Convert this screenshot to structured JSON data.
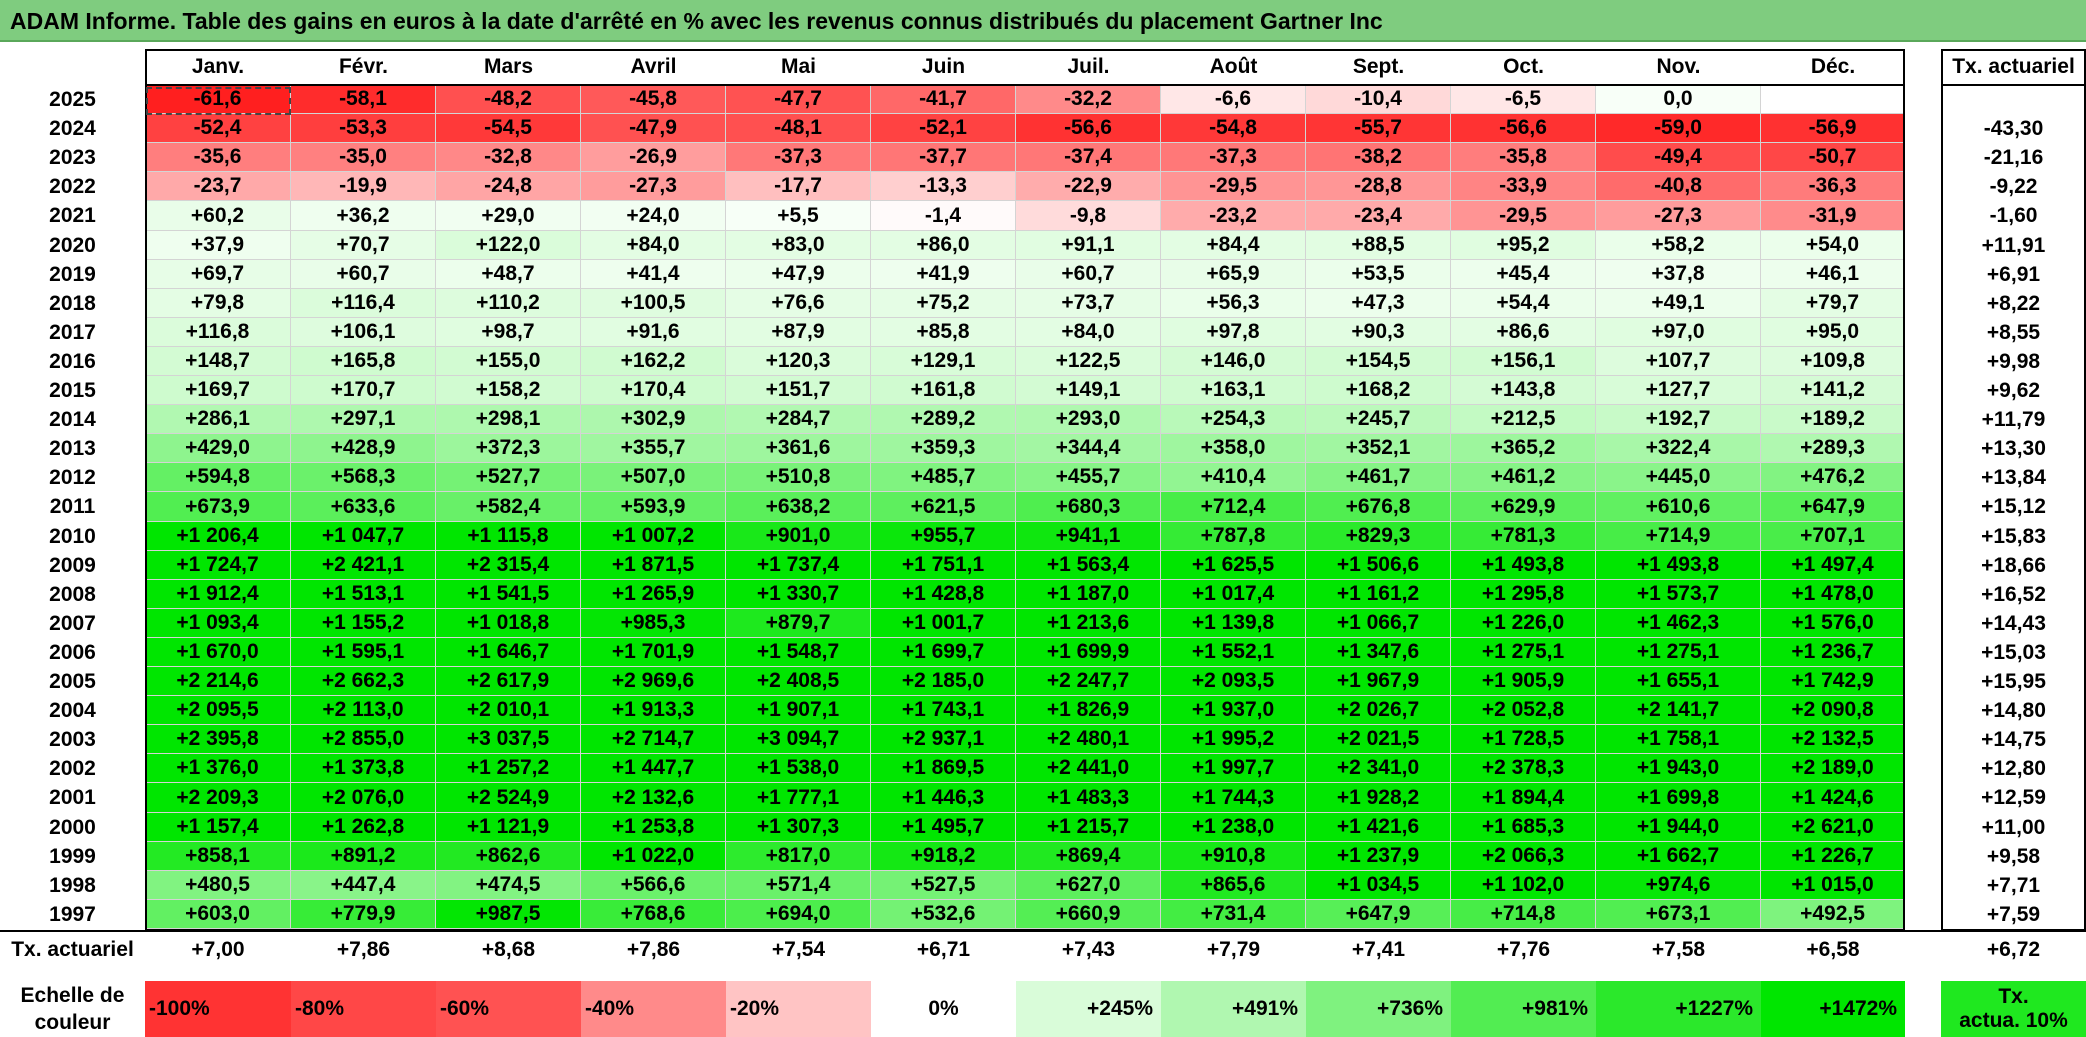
{
  "title": "ADAM Informe. Table des gains en euros à la date d'arrêté en % avec les revenus connus distribués du placement Gartner Inc",
  "months": [
    "Janv.",
    "Févr.",
    "Mars",
    "Avril",
    "Mai",
    "Juin",
    "Juil.",
    "Août",
    "Sept.",
    "Oct.",
    "Nov.",
    "Déc."
  ],
  "actuarial_header": "Tx. actuariel",
  "colors": {
    "title_bg": "#7fcc7f",
    "neg_max": "#ff1a1a",
    "pos_max": "#00e600",
    "neutral": "#ffffff"
  },
  "rows": [
    {
      "year": "2025",
      "values": [
        "-61,6",
        "-58,1",
        "-48,2",
        "-45,8",
        "-47,7",
        "-41,7",
        "-32,2",
        "-6,6",
        "-10,4",
        "-6,5",
        "0,0",
        ""
      ],
      "rate": ""
    },
    {
      "year": "2024",
      "values": [
        "-52,4",
        "-53,3",
        "-54,5",
        "-47,9",
        "-48,1",
        "-52,1",
        "-56,6",
        "-54,8",
        "-55,7",
        "-56,6",
        "-59,0",
        "-56,9"
      ],
      "rate": "-43,30"
    },
    {
      "year": "2023",
      "values": [
        "-35,6",
        "-35,0",
        "-32,8",
        "-26,9",
        "-37,3",
        "-37,7",
        "-37,4",
        "-37,3",
        "-38,2",
        "-35,8",
        "-49,4",
        "-50,7"
      ],
      "rate": "-21,16"
    },
    {
      "year": "2022",
      "values": [
        "-23,7",
        "-19,9",
        "-24,8",
        "-27,3",
        "-17,7",
        "-13,3",
        "-22,9",
        "-29,5",
        "-28,8",
        "-33,9",
        "-40,8",
        "-36,3"
      ],
      "rate": "-9,22"
    },
    {
      "year": "2021",
      "values": [
        "+60,2",
        "+36,2",
        "+29,0",
        "+24,0",
        "+5,5",
        "-1,4",
        "-9,8",
        "-23,2",
        "-23,4",
        "-29,5",
        "-27,3",
        "-31,9"
      ],
      "rate": "-1,60"
    },
    {
      "year": "2020",
      "values": [
        "+37,9",
        "+70,7",
        "+122,0",
        "+84,0",
        "+83,0",
        "+86,0",
        "+91,1",
        "+84,4",
        "+88,5",
        "+95,2",
        "+58,2",
        "+54,0"
      ],
      "rate": "+11,91"
    },
    {
      "year": "2019",
      "values": [
        "+69,7",
        "+60,7",
        "+48,7",
        "+41,4",
        "+47,9",
        "+41,9",
        "+60,7",
        "+65,9",
        "+53,5",
        "+45,4",
        "+37,8",
        "+46,1"
      ],
      "rate": "+6,91"
    },
    {
      "year": "2018",
      "values": [
        "+79,8",
        "+116,4",
        "+110,2",
        "+100,5",
        "+76,6",
        "+75,2",
        "+73,7",
        "+56,3",
        "+47,3",
        "+54,4",
        "+49,1",
        "+79,7"
      ],
      "rate": "+8,22"
    },
    {
      "year": "2017",
      "values": [
        "+116,8",
        "+106,1",
        "+98,7",
        "+91,6",
        "+87,9",
        "+85,8",
        "+84,0",
        "+97,8",
        "+90,3",
        "+86,6",
        "+97,0",
        "+95,0"
      ],
      "rate": "+8,55"
    },
    {
      "year": "2016",
      "values": [
        "+148,7",
        "+165,8",
        "+155,0",
        "+162,2",
        "+120,3",
        "+129,1",
        "+122,5",
        "+146,0",
        "+154,5",
        "+156,1",
        "+107,7",
        "+109,8"
      ],
      "rate": "+9,98"
    },
    {
      "year": "2015",
      "values": [
        "+169,7",
        "+170,7",
        "+158,2",
        "+170,4",
        "+151,7",
        "+161,8",
        "+149,1",
        "+163,1",
        "+168,2",
        "+143,8",
        "+127,7",
        "+141,2"
      ],
      "rate": "+9,62"
    },
    {
      "year": "2014",
      "values": [
        "+286,1",
        "+297,1",
        "+298,1",
        "+302,9",
        "+284,7",
        "+289,2",
        "+293,0",
        "+254,3",
        "+245,7",
        "+212,5",
        "+192,7",
        "+189,2"
      ],
      "rate": "+11,79"
    },
    {
      "year": "2013",
      "values": [
        "+429,0",
        "+428,9",
        "+372,3",
        "+355,7",
        "+361,6",
        "+359,3",
        "+344,4",
        "+358,0",
        "+352,1",
        "+365,2",
        "+322,4",
        "+289,3"
      ],
      "rate": "+13,30"
    },
    {
      "year": "2012",
      "values": [
        "+594,8",
        "+568,3",
        "+527,7",
        "+507,0",
        "+510,8",
        "+485,7",
        "+455,7",
        "+410,4",
        "+461,7",
        "+461,2",
        "+445,0",
        "+476,2"
      ],
      "rate": "+13,84"
    },
    {
      "year": "2011",
      "values": [
        "+673,9",
        "+633,6",
        "+582,4",
        "+593,9",
        "+638,2",
        "+621,5",
        "+680,3",
        "+712,4",
        "+676,8",
        "+629,9",
        "+610,6",
        "+647,9"
      ],
      "rate": "+15,12"
    },
    {
      "year": "2010",
      "values": [
        "+1 206,4",
        "+1 047,7",
        "+1 115,8",
        "+1 007,2",
        "+901,0",
        "+955,7",
        "+941,1",
        "+787,8",
        "+829,3",
        "+781,3",
        "+714,9",
        "+707,1"
      ],
      "rate": "+15,83"
    },
    {
      "year": "2009",
      "values": [
        "+1 724,7",
        "+2 421,1",
        "+2 315,4",
        "+1 871,5",
        "+1 737,4",
        "+1 751,1",
        "+1 563,4",
        "+1 625,5",
        "+1 506,6",
        "+1 493,8",
        "+1 493,8",
        "+1 497,4"
      ],
      "rate": "+18,66"
    },
    {
      "year": "2008",
      "values": [
        "+1 912,4",
        "+1 513,1",
        "+1 541,5",
        "+1 265,9",
        "+1 330,7",
        "+1 428,8",
        "+1 187,0",
        "+1 017,4",
        "+1 161,2",
        "+1 295,8",
        "+1 573,7",
        "+1 478,0"
      ],
      "rate": "+16,52"
    },
    {
      "year": "2007",
      "values": [
        "+1 093,4",
        "+1 155,2",
        "+1 018,8",
        "+985,3",
        "+879,7",
        "+1 001,7",
        "+1 213,6",
        "+1 139,8",
        "+1 066,7",
        "+1 226,0",
        "+1 462,3",
        "+1 576,0"
      ],
      "rate": "+14,43"
    },
    {
      "year": "2006",
      "values": [
        "+1 670,0",
        "+1 595,1",
        "+1 646,7",
        "+1 701,9",
        "+1 548,7",
        "+1 699,7",
        "+1 699,9",
        "+1 552,1",
        "+1 347,6",
        "+1 275,1",
        "+1 275,1",
        "+1 236,7"
      ],
      "rate": "+15,03"
    },
    {
      "year": "2005",
      "values": [
        "+2 214,6",
        "+2 662,3",
        "+2 617,9",
        "+2 969,6",
        "+2 408,5",
        "+2 185,0",
        "+2 247,7",
        "+2 093,5",
        "+1 967,9",
        "+1 905,9",
        "+1 655,1",
        "+1 742,9"
      ],
      "rate": "+15,95"
    },
    {
      "year": "2004",
      "values": [
        "+2 095,5",
        "+2 113,0",
        "+2 010,1",
        "+1 913,3",
        "+1 907,1",
        "+1 743,1",
        "+1 826,9",
        "+1 937,0",
        "+2 026,7",
        "+2 052,8",
        "+2 141,7",
        "+2 090,8"
      ],
      "rate": "+14,80"
    },
    {
      "year": "2003",
      "values": [
        "+2 395,8",
        "+2 855,0",
        "+3 037,5",
        "+2 714,7",
        "+3 094,7",
        "+2 937,1",
        "+2 480,1",
        "+1 995,2",
        "+2 021,5",
        "+1 728,5",
        "+1 758,1",
        "+2 132,5"
      ],
      "rate": "+14,75"
    },
    {
      "year": "2002",
      "values": [
        "+1 376,0",
        "+1 373,8",
        "+1 257,2",
        "+1 447,7",
        "+1 538,0",
        "+1 869,5",
        "+2 441,0",
        "+1 997,7",
        "+2 341,0",
        "+2 378,3",
        "+1 943,0",
        "+2 189,0"
      ],
      "rate": "+12,80"
    },
    {
      "year": "2001",
      "values": [
        "+2 209,3",
        "+2 076,0",
        "+2 524,9",
        "+2 132,6",
        "+1 777,1",
        "+1 446,3",
        "+1 483,3",
        "+1 744,3",
        "+1 928,2",
        "+1 894,4",
        "+1 699,8",
        "+1 424,6"
      ],
      "rate": "+12,59"
    },
    {
      "year": "2000",
      "values": [
        "+1 157,4",
        "+1 262,8",
        "+1 121,9",
        "+1 253,8",
        "+1 307,3",
        "+1 495,7",
        "+1 215,7",
        "+1 238,0",
        "+1 421,6",
        "+1 685,3",
        "+1 944,0",
        "+2 621,0"
      ],
      "rate": "+11,00"
    },
    {
      "year": "1999",
      "values": [
        "+858,1",
        "+891,2",
        "+862,6",
        "+1 022,0",
        "+817,0",
        "+918,2",
        "+869,4",
        "+910,8",
        "+1 237,9",
        "+2 066,3",
        "+1 662,7",
        "+1 226,7"
      ],
      "rate": "+9,58"
    },
    {
      "year": "1998",
      "values": [
        "+480,5",
        "+447,4",
        "+474,5",
        "+566,6",
        "+571,4",
        "+527,5",
        "+627,0",
        "+865,6",
        "+1 034,5",
        "+1 102,0",
        "+974,6",
        "+1 015,0"
      ],
      "rate": "+7,71"
    },
    {
      "year": "1997",
      "values": [
        "+603,0",
        "+779,9",
        "+987,5",
        "+768,6",
        "+694,0",
        "+532,6",
        "+660,9",
        "+731,4",
        "+647,9",
        "+714,8",
        "+673,1",
        "+492,5"
      ],
      "rate": "+7,59"
    }
  ],
  "footer": {
    "label": "Tx. actuariel",
    "values": [
      "+7,00",
      "+7,86",
      "+8,68",
      "+7,86",
      "+7,54",
      "+6,71",
      "+7,43",
      "+7,79",
      "+7,41",
      "+7,76",
      "+7,58",
      "+6,58"
    ],
    "rate": "+6,72"
  },
  "scale": {
    "label_line1": "Echelle de",
    "label_line2": "couleur",
    "items": [
      {
        "label": "-100%",
        "color": "#ff3333"
      },
      {
        "label": "-80%",
        "color": "#ff4747"
      },
      {
        "label": "-60%",
        "color": "#ff5252"
      },
      {
        "label": "-40%",
        "color": "#ff8a8a"
      },
      {
        "label": "-20%",
        "color": "#ffc4c4"
      },
      {
        "label": "0%",
        "color": "#ffffff"
      },
      {
        "label": "+245%",
        "color": "#d9fcd9"
      },
      {
        "label": "+491%",
        "color": "#b0f7b0"
      },
      {
        "label": "+736%",
        "color": "#7ff27f"
      },
      {
        "label": "+981%",
        "color": "#52ed52"
      },
      {
        "label": "+1227%",
        "color": "#2be82b"
      },
      {
        "label": "+1472%",
        "color": "#00e600"
      }
    ],
    "last_line1": "Tx.",
    "last_line2": "actua. 10%",
    "last_color": "#1fe81f"
  }
}
